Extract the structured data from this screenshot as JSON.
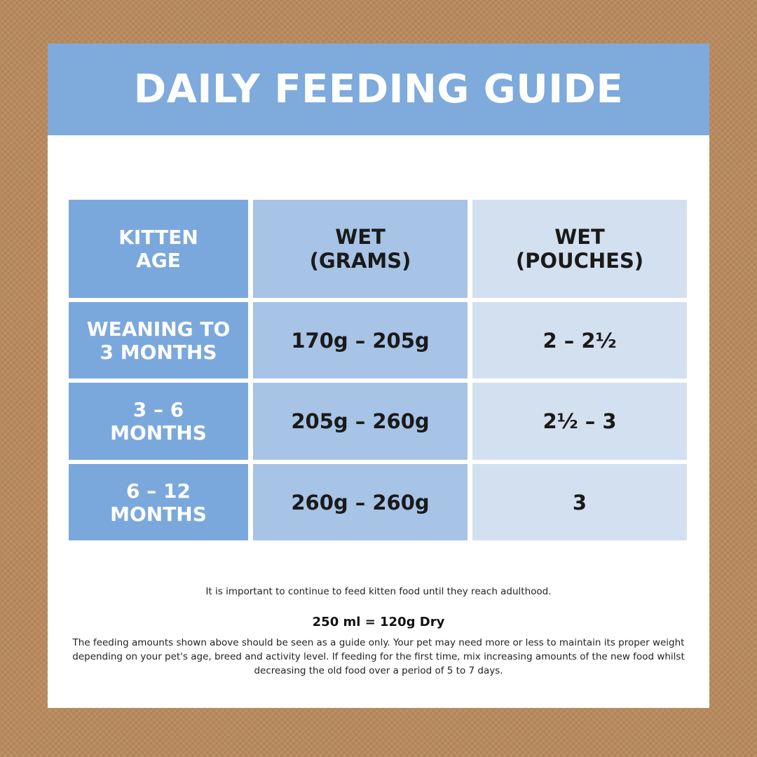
{
  "header": {
    "title": "DAILY FEEDING GUIDE"
  },
  "table": {
    "header": [
      [
        "KITTEN",
        "AGE"
      ],
      [
        "WET",
        "(GRAMS)"
      ],
      [
        "WET",
        "(POUCHES)"
      ]
    ],
    "rows": [
      [
        [
          "WEANING TO",
          "3 MONTHS"
        ],
        [
          "170g – 205g"
        ],
        [
          "2 – 2½"
        ]
      ],
      [
        [
          "3 – 6",
          "MONTHS"
        ],
        [
          "205g – 260g"
        ],
        [
          "2½ – 3"
        ]
      ],
      [
        [
          "6 – 12",
          "MONTHS"
        ],
        [
          "260g – 260g"
        ],
        [
          "3"
        ]
      ]
    ]
  },
  "notes": {
    "reminder": "It is important to continue to feed kitten food until they reach adulthood.",
    "conversion": "250 ml = 120g Dry",
    "disclaimer": "The feeding amounts shown above should be seen as a guide only. Your pet may need more or less to maintain its proper weight depending on your pet's age, breed and activity level. If feeding for the first time, mix increasing amounts of the new food whilst decreasing the old food over a period of 5 to 7 days."
  }
}
